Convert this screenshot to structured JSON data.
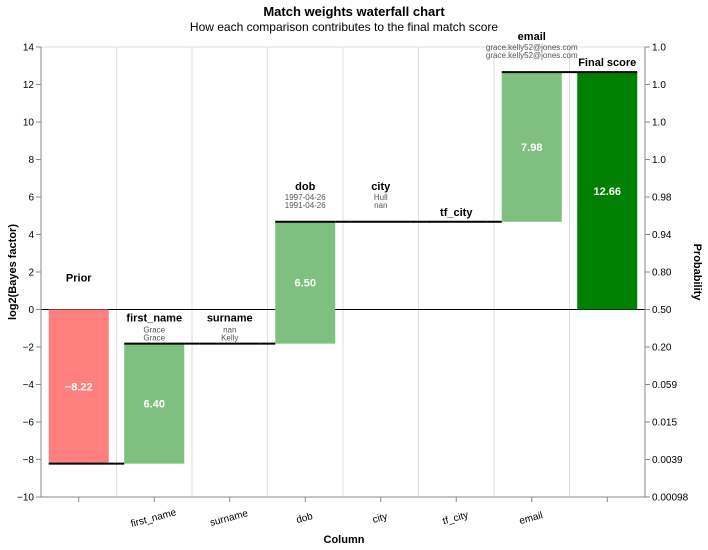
{
  "chart_data": {
    "type": "waterfall",
    "title": "Match weights waterfall chart",
    "subtitle": "How each comparison contributes to the final match score",
    "xlabel": "Column",
    "ylabel": "log2(Bayes factor)",
    "y2label": "Probability",
    "ylim": [
      -10,
      14
    ],
    "yticks": [
      "−10",
      "−8",
      "−6",
      "−4",
      "−2",
      "0",
      "2",
      "4",
      "6",
      "8",
      "10",
      "12",
      "14"
    ],
    "ytick_values": [
      -10,
      -8,
      -6,
      -4,
      -2,
      0,
      2,
      4,
      6,
      8,
      10,
      12,
      14
    ],
    "y2ticks": [
      "0.00098",
      "0.0039",
      "0.015",
      "0.059",
      "0.20",
      "0.50",
      "0.80",
      "0.94",
      "0.98",
      "1.0",
      "1.0",
      "1.0",
      "1.0"
    ],
    "grid": true,
    "colors": {
      "negative": "#ff7f7f",
      "positive": "#7fbf7f",
      "final": "#008000",
      "step": "#000000",
      "grid": "#dddddd"
    },
    "bars": [
      {
        "name": "Prior",
        "tick": "",
        "value": -8.22,
        "label": "−8.22",
        "start": 0,
        "end": -8.22,
        "v1": "",
        "v2": "",
        "kind": "negative",
        "label_pos": "top"
      },
      {
        "name": "first_name",
        "tick": "first_name",
        "value": 6.4,
        "label": "6.40",
        "start": -8.22,
        "end": -1.82,
        "v1": "Grace",
        "v2": "Grace",
        "kind": "positive",
        "label_pos": "bottom"
      },
      {
        "name": "surname",
        "tick": "surname",
        "value": 0.0,
        "label": "",
        "start": -1.82,
        "end": -1.82,
        "v1": "nan",
        "v2": "Kelly",
        "kind": "positive",
        "label_pos": "bottom"
      },
      {
        "name": "dob",
        "tick": "dob",
        "value": 6.5,
        "label": "6.50",
        "start": -1.82,
        "end": 4.68,
        "v1": "1997-04-26",
        "v2": "1991-04-26",
        "kind": "positive",
        "label_pos": "top"
      },
      {
        "name": "city",
        "tick": "city",
        "value": 0.0,
        "label": "",
        "start": 4.68,
        "end": 4.68,
        "v1": "Hull",
        "v2": "nan",
        "kind": "positive",
        "label_pos": "top"
      },
      {
        "name": "tf_city",
        "tick": "tf_city",
        "value": 0.0,
        "label": "",
        "start": 4.68,
        "end": 4.68,
        "v1": "",
        "v2": "",
        "kind": "positive",
        "label_pos": "top"
      },
      {
        "name": "email",
        "tick": "email",
        "value": 7.98,
        "label": "7.98",
        "start": 4.68,
        "end": 12.66,
        "v1": "grace.kelly52@jones.com",
        "v2": "grace.kelly52@jones.com",
        "kind": "positive",
        "label_pos": "top"
      },
      {
        "name": "Final score",
        "tick": "",
        "value": 12.66,
        "label": "12.66",
        "start": 0,
        "end": 12.66,
        "v1": "",
        "v2": "",
        "kind": "final",
        "label_pos": "top"
      }
    ]
  }
}
